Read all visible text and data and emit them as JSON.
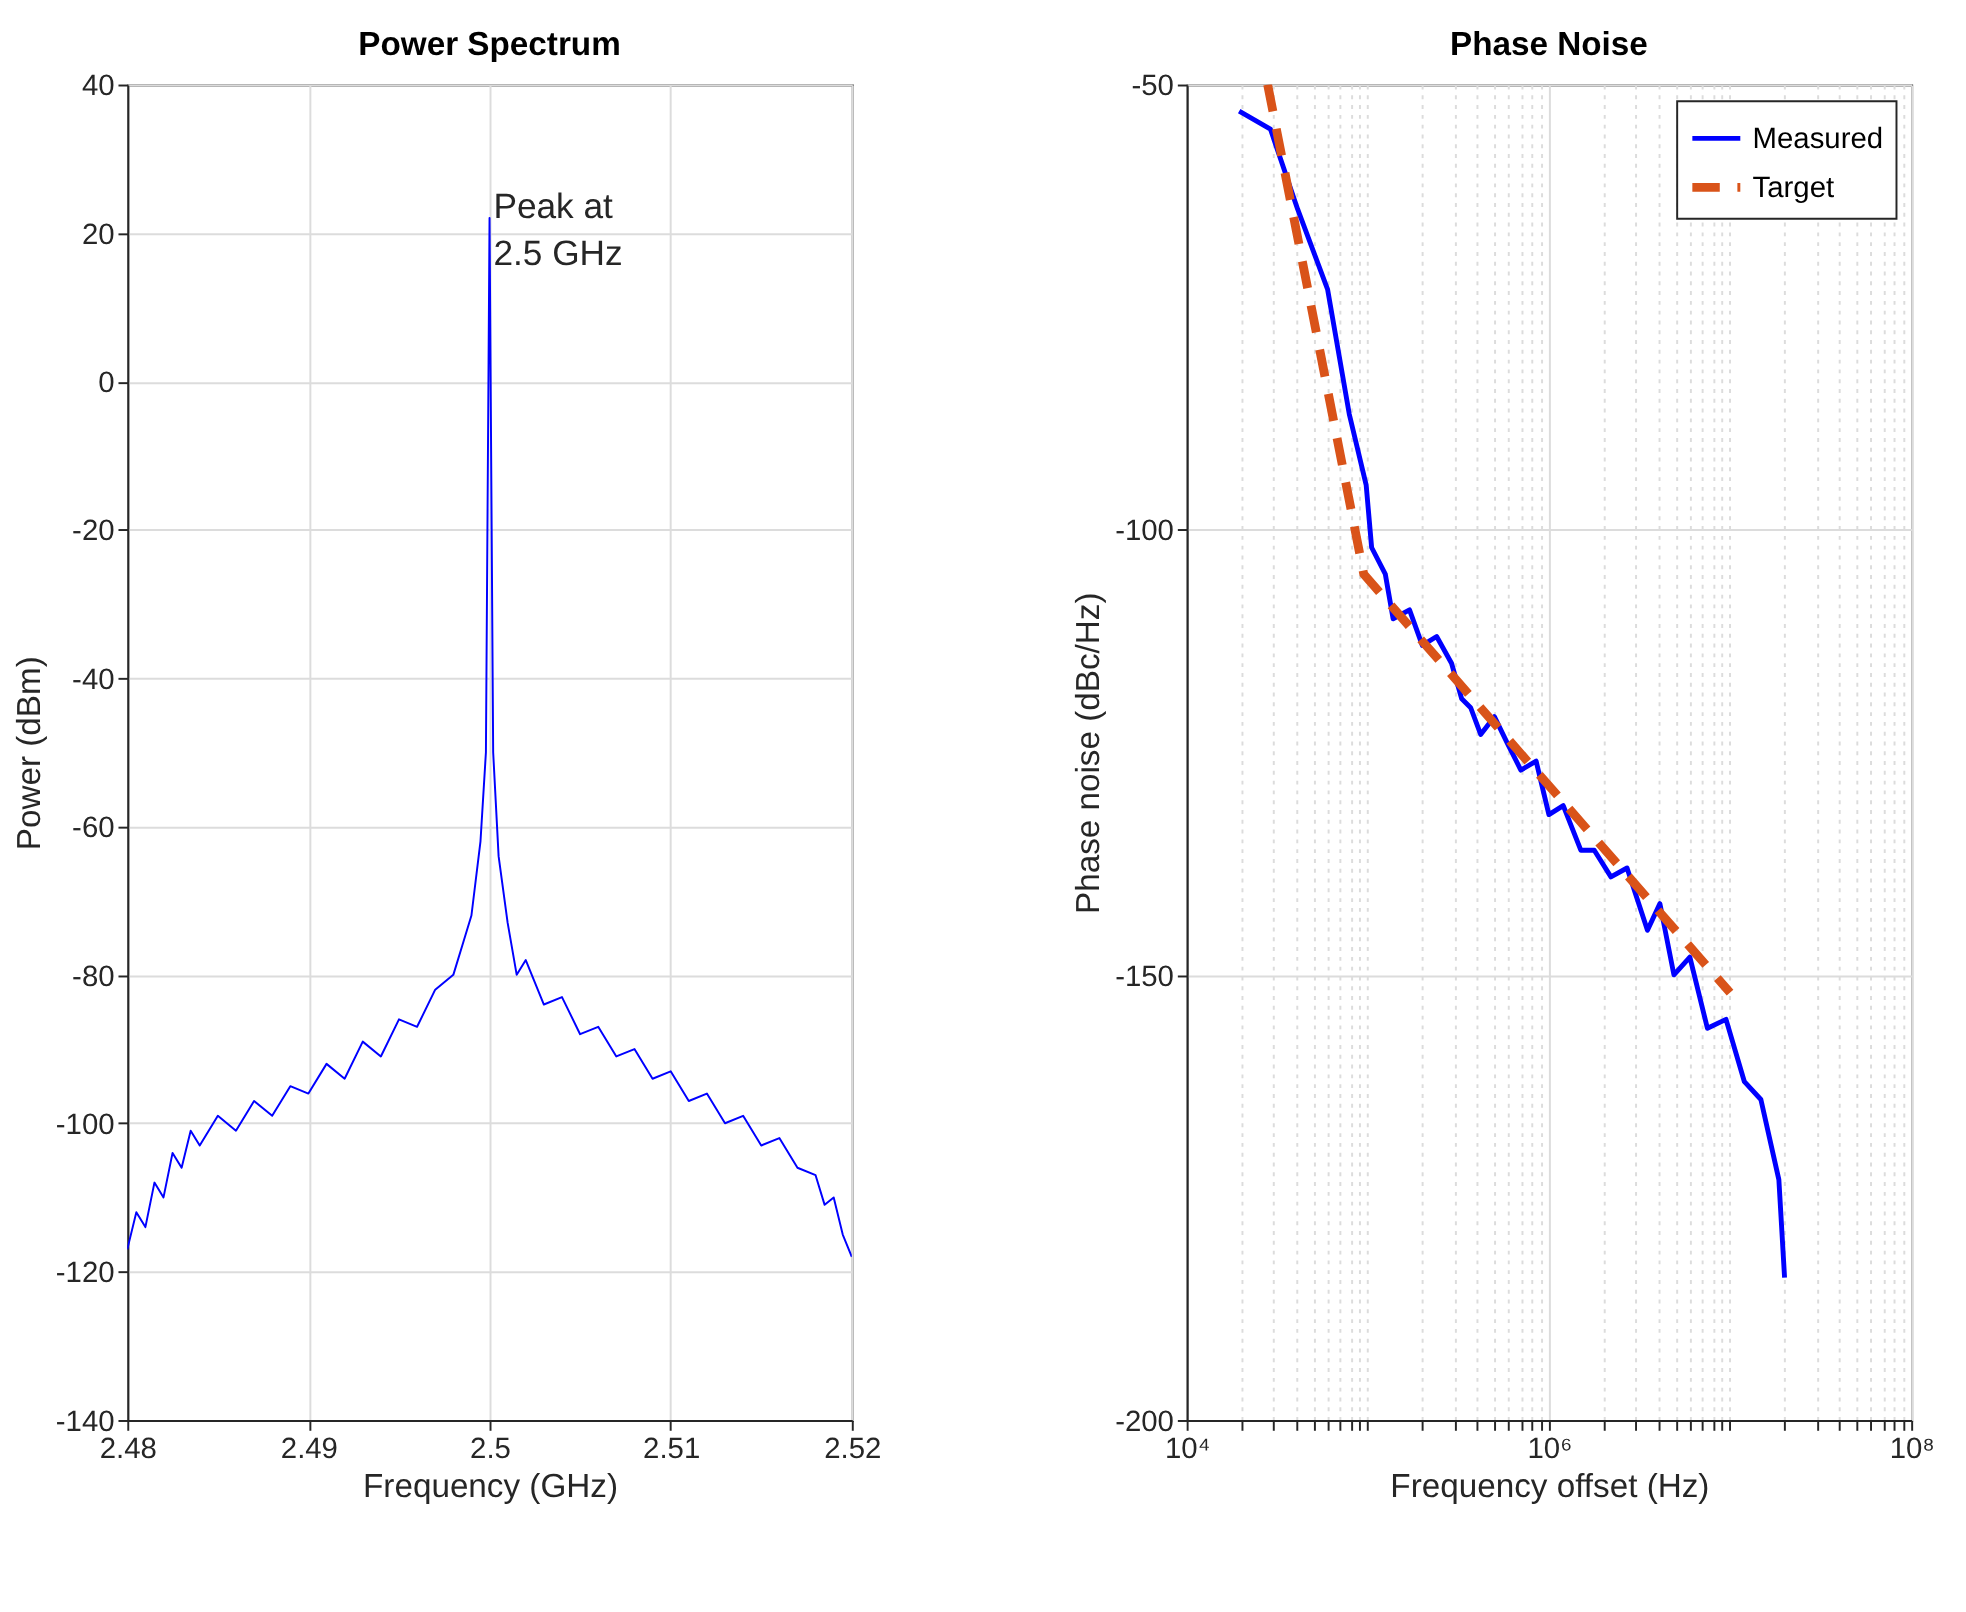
{
  "chart_data": [
    {
      "type": "line",
      "title": "Power Spectrum",
      "xlabel": "Frequency (GHz)",
      "ylabel": "Power (dBm)",
      "color": "#0000ff",
      "x": [
        2.48,
        2.4805,
        2.481,
        2.4815,
        2.482,
        2.4825,
        2.483,
        2.4835,
        2.484,
        2.485,
        2.486,
        2.487,
        2.488,
        2.489,
        2.49,
        2.491,
        2.492,
        2.493,
        2.494,
        2.495,
        2.496,
        2.497,
        2.498,
        2.4985,
        2.499,
        2.4995,
        2.4998,
        2.5,
        2.5002,
        2.5005,
        2.501,
        2.5015,
        2.502,
        2.503,
        2.504,
        2.505,
        2.506,
        2.507,
        2.508,
        2.509,
        2.51,
        2.511,
        2.512,
        2.513,
        2.514,
        2.515,
        2.516,
        2.517,
        2.518,
        2.5185,
        2.519,
        2.5195,
        2.52
      ],
      "values": [
        -117,
        -112,
        -114,
        -108,
        -110,
        -104,
        -106,
        -101,
        -103,
        -99,
        -101,
        -97,
        -99,
        -95,
        -96,
        -92,
        -94,
        -89,
        -91,
        -86,
        -87,
        -82,
        -80,
        -76,
        -72,
        -62,
        -50,
        22,
        -50,
        -64,
        -73,
        -80,
        -78,
        -84,
        -83,
        -88,
        -87,
        -91,
        -90,
        -94,
        -93,
        -97,
        -96,
        -100,
        -99,
        -103,
        -102,
        -106,
        -107,
        -111,
        -110,
        -115,
        -118
      ],
      "xlim": [
        2.48,
        2.52
      ],
      "ylim": [
        -140,
        40
      ],
      "xticks": [
        2.48,
        2.49,
        2.5,
        2.51,
        2.52
      ],
      "yticks": [
        -140,
        -120,
        -100,
        -80,
        -60,
        -40,
        -20,
        0,
        20,
        40
      ],
      "grid": true,
      "annotations": [
        {
          "text": "Peak at\n 2.5 GHz",
          "x": 2.5,
          "y": 22
        }
      ]
    },
    {
      "type": "line",
      "title": "Phase Noise",
      "xlabel": "Frequency offset (Hz)",
      "ylabel": "Phase noise (dBc/Hz)",
      "log": "x",
      "legend": "top right",
      "grid": true,
      "xlim": [
        10000,
        100000000
      ],
      "ylim": [
        -200,
        -50
      ],
      "xticks": [
        {
          "value": 10000,
          "label": "10⁴"
        },
        {
          "value": 20000,
          "label": null
        },
        {
          "value": 30000,
          "label": null
        },
        {
          "value": 40000,
          "label": null
        },
        {
          "value": 50000,
          "label": null
        },
        {
          "value": 60000,
          "label": null
        },
        {
          "value": 70000,
          "label": null
        },
        {
          "value": 80000,
          "label": null
        },
        {
          "value": 90000,
          "label": null
        },
        {
          "value": 100000,
          "label": null
        },
        {
          "value": 200000,
          "label": null
        },
        {
          "value": 300000,
          "label": null
        },
        {
          "value": 400000,
          "label": null
        },
        {
          "value": 500000,
          "label": null
        },
        {
          "value": 600000,
          "label": null
        },
        {
          "value": 700000,
          "label": null
        },
        {
          "value": 800000,
          "label": null
        },
        {
          "value": 900000,
          "label": null
        },
        {
          "value": 1000000,
          "label": "10⁶"
        },
        {
          "value": 2000000,
          "label": null
        },
        {
          "value": 3000000,
          "label": null
        },
        {
          "value": 4000000,
          "label": null
        },
        {
          "value": 5000000,
          "label": null
        },
        {
          "value": 6000000,
          "label": null
        },
        {
          "value": 7000000,
          "label": null
        },
        {
          "value": 8000000,
          "label": null
        },
        {
          "value": 9000000,
          "label": null
        },
        {
          "value": 10000000,
          "label": null
        },
        {
          "value": 20000000,
          "label": null
        },
        {
          "value": 30000000,
          "label": null
        },
        {
          "value": 40000000,
          "label": null
        },
        {
          "value": 50000000,
          "label": null
        },
        {
          "value": 60000000,
          "label": null
        },
        {
          "value": 70000000,
          "label": null
        },
        {
          "value": 80000000,
          "label": null
        },
        {
          "value": 90000000,
          "label": null
        },
        {
          "value": 100000000,
          "label": "10⁸"
        }
      ],
      "yticks": [
        -200,
        -150,
        -100,
        -50
      ],
      "series": [
        {
          "name": "Measured",
          "color": "#0000ff",
          "line_style": "solid",
          "x": [
            19500,
            29000,
            41000,
            60000,
            79000,
            98000,
            105000,
            125000,
            138000,
            170000,
            200000,
            240000,
            290000,
            330000,
            370000,
            420000,
            500000,
            590000,
            700000,
            850000,
            1000000,
            1200000,
            1500000,
            1780000,
            2200000,
            2700000,
            3500000,
            4100000,
            4900000,
            6000000,
            7500000,
            9500000,
            12000000,
            14800000,
            18600000,
            20000000
          ],
          "values": [
            -53,
            -55,
            -64,
            -73,
            -87,
            -95,
            -102,
            -105,
            -110,
            -109,
            -113,
            -112,
            -115,
            -119,
            -120,
            -123,
            -121,
            -124,
            -127,
            -126,
            -132,
            -131,
            -136,
            -136,
            -139,
            -138,
            -145,
            -142,
            -150,
            -148,
            -156,
            -155,
            -162,
            -164,
            -173,
            -184
          ]
        },
        {
          "name": "Target",
          "color": "#d95319",
          "line_style": "dashed",
          "x": [
            28000,
            95000,
            10000000
          ],
          "values": [
            -50,
            -105,
            -152
          ]
        }
      ]
    }
  ]
}
